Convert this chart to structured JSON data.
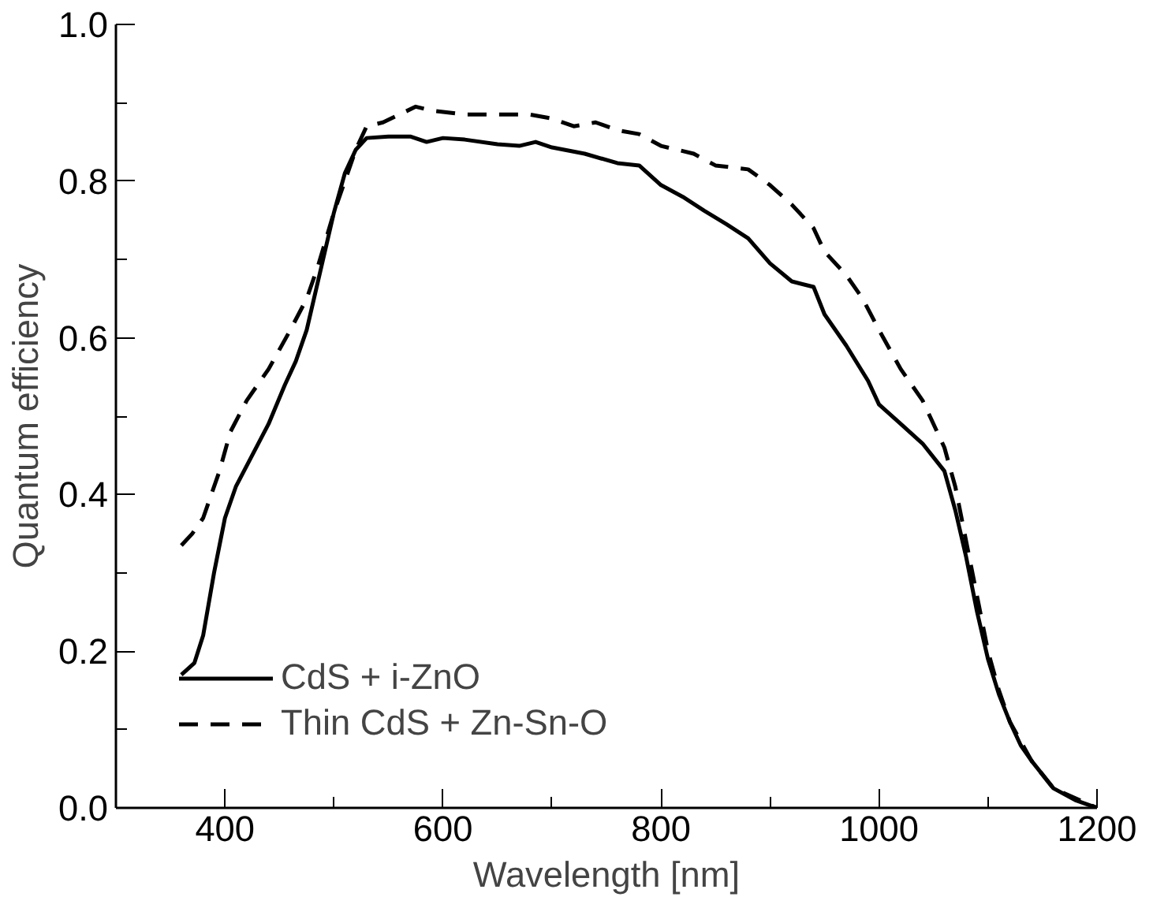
{
  "chart_data": {
    "type": "line",
    "xlabel": "Wavelength [nm]",
    "ylabel": "Quantum efficiency",
    "xlim": [
      300,
      1200
    ],
    "ylim": [
      0,
      1.0
    ],
    "xticks": [
      {
        "value": 300,
        "label": null
      },
      400,
      {
        "value": 500,
        "label": null
      },
      600,
      {
        "value": 700,
        "label": null
      },
      800,
      {
        "value": 900,
        "label": null
      },
      1000,
      {
        "value": 1100,
        "label": null
      },
      1200
    ],
    "yticks": [
      {
        "value": 0,
        "label": "0.0"
      },
      {
        "value": 0.1,
        "label": null
      },
      0.2,
      {
        "value": 0.3,
        "label": null
      },
      0.4,
      {
        "value": 0.5,
        "label": null
      },
      0.6,
      {
        "value": 0.7,
        "label": null
      },
      0.8,
      {
        "value": 0.9,
        "label": null
      },
      {
        "value": 1.0,
        "label": "1.0"
      }
    ],
    "grid": false,
    "legend": "bottom left",
    "series": [
      {
        "name": "CdS + i-ZnO",
        "color": "#000000",
        "line_style": "solid",
        "x": [
          360,
          372,
          380,
          390,
          400,
          410,
          425,
          440,
          455,
          465,
          475,
          490,
          500,
          510,
          520,
          530,
          550,
          570,
          585,
          600,
          620,
          650,
          670,
          685,
          700,
          730,
          760,
          780,
          800,
          820,
          840,
          860,
          880,
          900,
          920,
          940,
          950,
          970,
          990,
          1000,
          1020,
          1040,
          1060,
          1070,
          1080,
          1090,
          1100,
          1110,
          1120,
          1130,
          1140,
          1160,
          1180,
          1200
        ],
        "values": [
          0.17,
          0.185,
          0.22,
          0.3,
          0.37,
          0.41,
          0.45,
          0.49,
          0.54,
          0.57,
          0.61,
          0.7,
          0.76,
          0.81,
          0.84,
          0.855,
          0.857,
          0.857,
          0.85,
          0.855,
          0.853,
          0.847,
          0.845,
          0.85,
          0.843,
          0.835,
          0.823,
          0.82,
          0.795,
          0.78,
          0.762,
          0.745,
          0.727,
          0.695,
          0.672,
          0.665,
          0.63,
          0.59,
          0.545,
          0.515,
          0.49,
          0.465,
          0.43,
          0.38,
          0.32,
          0.25,
          0.19,
          0.145,
          0.11,
          0.08,
          0.06,
          0.025,
          0.01,
          0.0
        ]
      },
      {
        "name": "Thin CdS + Zn-Sn-O",
        "color": "#000000",
        "line_style": "dashed",
        "x": [
          360,
          370,
          380,
          395,
          405,
          420,
          440,
          460,
          475,
          485,
          500,
          510,
          520,
          530,
          545,
          560,
          575,
          590,
          620,
          660,
          680,
          700,
          720,
          740,
          760,
          780,
          800,
          830,
          850,
          880,
          900,
          920,
          940,
          950,
          970,
          985,
          1000,
          1020,
          1040,
          1060,
          1070,
          1080,
          1090,
          1100,
          1110,
          1120,
          1140,
          1160,
          1200
        ],
        "values": [
          0.335,
          0.35,
          0.37,
          0.43,
          0.48,
          0.52,
          0.56,
          0.61,
          0.65,
          0.69,
          0.76,
          0.8,
          0.84,
          0.87,
          0.875,
          0.885,
          0.895,
          0.89,
          0.885,
          0.885,
          0.885,
          0.88,
          0.87,
          0.875,
          0.865,
          0.86,
          0.845,
          0.835,
          0.82,
          0.815,
          0.795,
          0.77,
          0.74,
          0.71,
          0.68,
          0.65,
          0.61,
          0.56,
          0.52,
          0.46,
          0.41,
          0.34,
          0.27,
          0.2,
          0.15,
          0.11,
          0.06,
          0.025,
          0.0
        ]
      }
    ]
  }
}
